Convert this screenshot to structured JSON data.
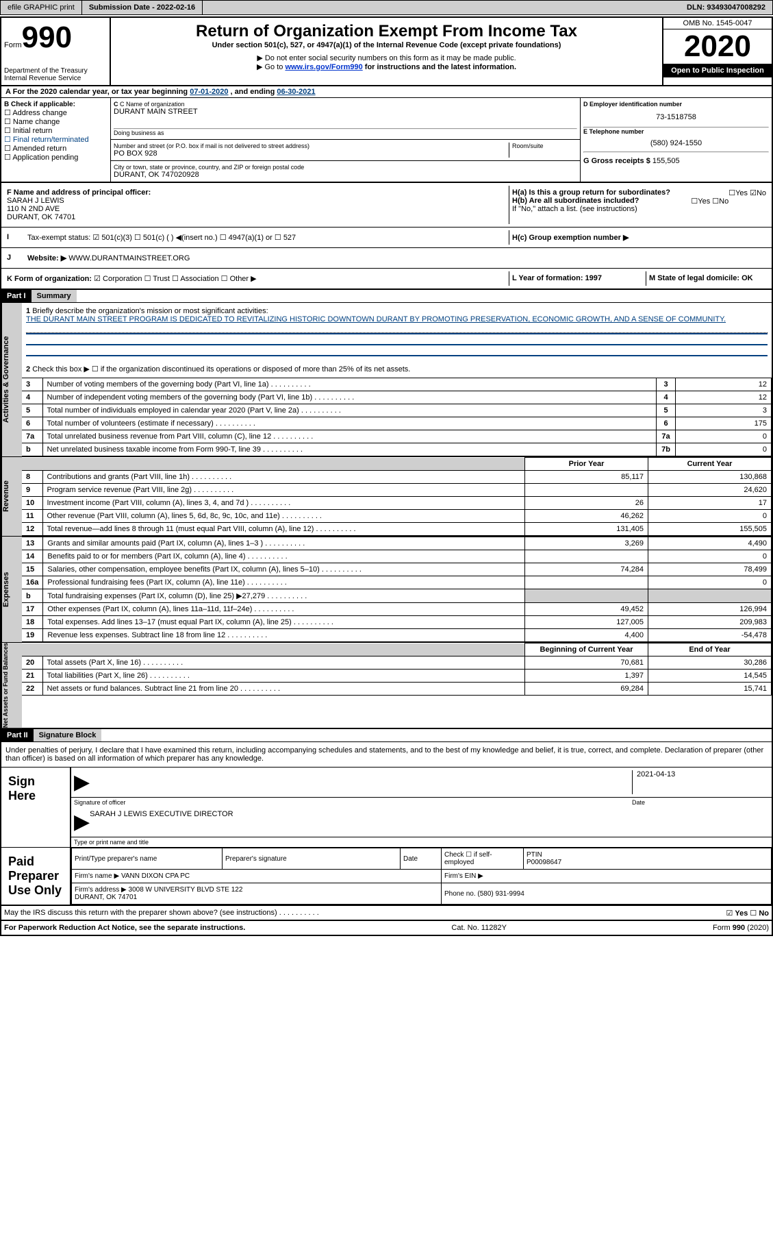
{
  "header": {
    "efile": "efile GRAPHIC print",
    "submission_label": "Submission Date - ",
    "submission_date": "2022-02-16",
    "dln_label": "DLN: ",
    "dln": "93493047008292"
  },
  "top": {
    "form_label": "Form",
    "form_num": "990",
    "dept": "Department of the Treasury\nInternal Revenue Service",
    "title": "Return of Organization Exempt From Income Tax",
    "subtitle": "Under section 501(c), 527, or 4947(a)(1) of the Internal Revenue Code (except private foundations)",
    "note1": "▶ Do not enter social security numbers on this form as it may be made public.",
    "note2_pre": "▶ Go to ",
    "note2_link": "www.irs.gov/Form990",
    "note2_post": " for instructions and the latest information.",
    "omb": "OMB No. 1545-0047",
    "year": "2020",
    "open": "Open to Public Inspection"
  },
  "period": {
    "text_pre": "For the 2020 calendar year, or tax year beginning ",
    "begin": "07-01-2020",
    "mid": "    , and ending ",
    "end": "06-30-2021"
  },
  "section_b": {
    "label": "B Check if applicable:",
    "items": [
      "Address change",
      "Name change",
      "Initial return",
      "Final return/terminated",
      "Amended return",
      "Application pending"
    ],
    "c_label": "C Name of organization",
    "org_name": "DURANT MAIN STREET",
    "dba": "Doing business as",
    "addr_label": "Number and street (or P.O. box if mail is not delivered to street address)",
    "room": "Room/suite",
    "addr": "PO BOX 928",
    "city_label": "City or town, state or province, country, and ZIP or foreign postal code",
    "city": "DURANT, OK  747020928",
    "d_label": "D Employer identification number",
    "ein": "73-1518758",
    "e_label": "E Telephone number",
    "phone": "(580) 924-1550",
    "g_label": "G Gross receipts $ ",
    "gross": "155,505"
  },
  "section_f": {
    "label": "F  Name and address of principal officer:",
    "officer": "SARAH J LEWIS\n110 N 2ND AVE\nDURANT, OK  74701",
    "ha_label": "H(a)  Is this a group return for subordinates?",
    "ha_yes": "Yes",
    "ha_no": "No",
    "hb_label": "H(b)  Are all subordinates included?",
    "hb_note": "If \"No,\" attach a list. (see instructions)",
    "hc_label": "H(c)  Group exemption number ▶"
  },
  "section_i": {
    "label": "Tax-exempt status:",
    "opts": [
      "501(c)(3)",
      "501(c) (  ) ◀(insert no.)",
      "4947(a)(1) or",
      "527"
    ]
  },
  "section_j": {
    "label": "Website: ▶",
    "url": "WWW.DURANTMAINSTREET.ORG"
  },
  "section_k": {
    "label": "K Form of organization:",
    "opts": [
      "Corporation",
      "Trust",
      "Association",
      "Other ▶"
    ]
  },
  "section_lm": {
    "l": "L Year of formation: 1997",
    "m": "M State of legal domicile: OK"
  },
  "part1": {
    "head": "Part I",
    "title": "Summary",
    "q1_label": "Briefly describe the organization's mission or most significant activities:",
    "q1_text": "THE DURANT MAIN STREET PROGRAM IS DEDICATED TO REVITALIZING HISTORIC DOWNTOWN DURANT BY PROMOTING PRESERVATION, ECONOMIC GROWTH, AND A SENSE OF COMMUNITY.",
    "side1": "Activities & Governance",
    "side2": "Revenue",
    "side3": "Expenses",
    "side4": "Net Assets or Fund Balances",
    "q2": "Check this box ▶ ☐  if the organization discontinued its operations or disposed of more than 25% of its net assets.",
    "rows_top": [
      {
        "n": "3",
        "t": "Number of voting members of the governing body (Part VI, line 1a)",
        "box": "3",
        "v": "12"
      },
      {
        "n": "4",
        "t": "Number of independent voting members of the governing body (Part VI, line 1b)",
        "box": "4",
        "v": "12"
      },
      {
        "n": "5",
        "t": "Total number of individuals employed in calendar year 2020 (Part V, line 2a)",
        "box": "5",
        "v": "3"
      },
      {
        "n": "6",
        "t": "Total number of volunteers (estimate if necessary)",
        "box": "6",
        "v": "175"
      },
      {
        "n": "7a",
        "t": "Total unrelated business revenue from Part VIII, column (C), line 12",
        "box": "7a",
        "v": "0"
      },
      {
        "n": "b",
        "t": "Net unrelated business taxable income from Form 990-T, line 39",
        "box": "7b",
        "v": "0"
      }
    ],
    "col_heads": [
      "Prior Year",
      "Current Year"
    ],
    "rows_rev": [
      {
        "n": "8",
        "t": "Contributions and grants (Part VIII, line 1h)",
        "py": "85,117",
        "cy": "130,868"
      },
      {
        "n": "9",
        "t": "Program service revenue (Part VIII, line 2g)",
        "py": "",
        "cy": "24,620"
      },
      {
        "n": "10",
        "t": "Investment income (Part VIII, column (A), lines 3, 4, and 7d )",
        "py": "26",
        "cy": "17"
      },
      {
        "n": "11",
        "t": "Other revenue (Part VIII, column (A), lines 5, 6d, 8c, 9c, 10c, and 11e)",
        "py": "46,262",
        "cy": "0"
      },
      {
        "n": "12",
        "t": "Total revenue—add lines 8 through 11 (must equal Part VIII, column (A), line 12)",
        "py": "131,405",
        "cy": "155,505"
      }
    ],
    "rows_exp": [
      {
        "n": "13",
        "t": "Grants and similar amounts paid (Part IX, column (A), lines 1–3 )",
        "py": "3,269",
        "cy": "4,490"
      },
      {
        "n": "14",
        "t": "Benefits paid to or for members (Part IX, column (A), line 4)",
        "py": "",
        "cy": "0"
      },
      {
        "n": "15",
        "t": "Salaries, other compensation, employee benefits (Part IX, column (A), lines 5–10)",
        "py": "74,284",
        "cy": "78,499"
      },
      {
        "n": "16a",
        "t": "Professional fundraising fees (Part IX, column (A), line 11e)",
        "py": "",
        "cy": "0"
      },
      {
        "n": "b",
        "t": "Total fundraising expenses (Part IX, column (D), line 25) ▶27,279",
        "py": "shade",
        "cy": "shade"
      },
      {
        "n": "17",
        "t": "Other expenses (Part IX, column (A), lines 11a–11d, 11f–24e)",
        "py": "49,452",
        "cy": "126,994"
      },
      {
        "n": "18",
        "t": "Total expenses. Add lines 13–17 (must equal Part IX, column (A), line 25)",
        "py": "127,005",
        "cy": "209,983"
      },
      {
        "n": "19",
        "t": "Revenue less expenses. Subtract line 18 from line 12",
        "py": "4,400",
        "cy": "-54,478"
      }
    ],
    "col_heads2": [
      "Beginning of Current Year",
      "End of Year"
    ],
    "rows_net": [
      {
        "n": "20",
        "t": "Total assets (Part X, line 16)",
        "py": "70,681",
        "cy": "30,286"
      },
      {
        "n": "21",
        "t": "Total liabilities (Part X, line 26)",
        "py": "1,397",
        "cy": "14,545"
      },
      {
        "n": "22",
        "t": "Net assets or fund balances. Subtract line 21 from line 20",
        "py": "69,284",
        "cy": "15,741"
      }
    ]
  },
  "part2": {
    "head": "Part II",
    "title": "Signature Block",
    "penalty": "Under penalties of perjury, I declare that I have examined this return, including accompanying schedules and statements, and to the best of my knowledge and belief, it is true, correct, and complete. Declaration of preparer (other than officer) is based on all information of which preparer has any knowledge.",
    "sign_here": "Sign Here",
    "sig_officer": "Signature of officer",
    "date_label": "Date",
    "sig_date": "2021-04-13",
    "name_title": "SARAH J LEWIS EXECUTIVE DIRECTOR",
    "type_name": "Type or print name and title",
    "paid": "Paid Preparer Use Only",
    "prep_name_label": "Print/Type preparer's name",
    "prep_sig_label": "Preparer's signature",
    "check_self": "Check ☐ if self-employed",
    "ptin_label": "PTIN",
    "ptin": "P00098647",
    "firm_name_label": "Firm's name    ▶",
    "firm_name": "VANN DIXON CPA PC",
    "firm_ein_label": "Firm's EIN ▶",
    "firm_addr_label": "Firm's address ▶",
    "firm_addr": "3008 W UNIVERSITY BLVD STE 122\nDURANT, OK  74701",
    "phone_label": "Phone no. ",
    "phone": "(580) 931-9994",
    "may_irs": "May the IRS discuss this return with the preparer shown above? (see instructions)",
    "yes": "Yes",
    "no": "No"
  },
  "footer": {
    "left": "For Paperwork Reduction Act Notice, see the separate instructions.",
    "mid": "Cat. No. 11282Y",
    "right": "Form 990 (2020)"
  }
}
